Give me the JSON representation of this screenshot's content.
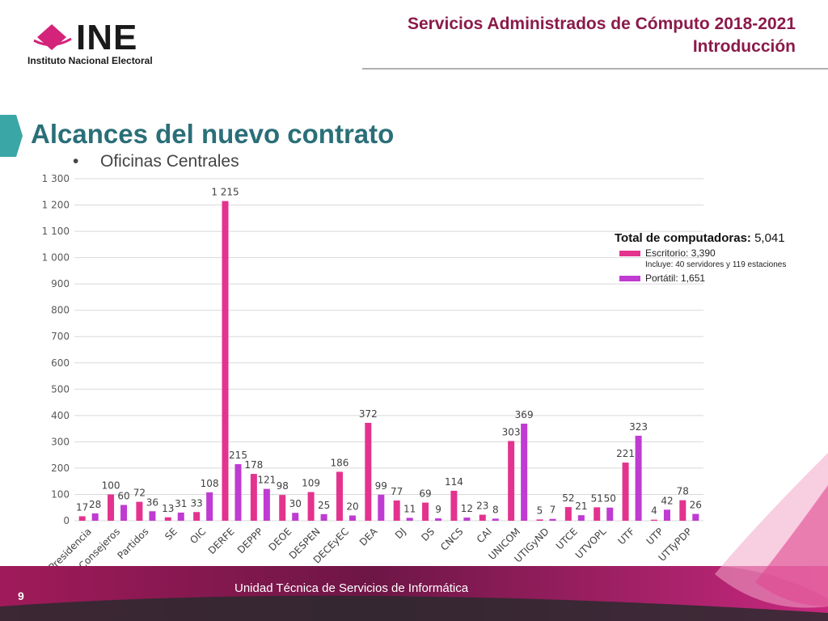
{
  "logo": {
    "wordmark": "INE",
    "subtitle": "Instituto Nacional Electoral"
  },
  "header": {
    "line1": "Servicios Administrados de Cómputo 2018-2021",
    "line2": "Introducción"
  },
  "page": {
    "title": "Alcances del nuevo contrato",
    "bullet": "Oficinas Centrales",
    "number": "9"
  },
  "footer": {
    "text": "Unidad Técnica de Servicios de Informática"
  },
  "legend": {
    "total_label": "Total de computadoras:",
    "total_value": "5,041",
    "desktop": "Escritorio: 3,390",
    "desktop_note": "Incluye: 40 servidores y 119 estaciones",
    "laptop": "Portátil: 1,651"
  },
  "colors": {
    "desktop": "#e3338f",
    "laptop": "#bf3bd2",
    "title": "#2a6f78",
    "header": "#8b1a4a",
    "accent": "#3aa6a6"
  },
  "chart_data": {
    "type": "bar",
    "categories": [
      "Presidencia",
      "Consejeros",
      "Partidos",
      "SE",
      "OIC",
      "DERFE",
      "DEPPP",
      "DEOE",
      "DESPEN",
      "DECEyEC",
      "DEA",
      "DJ",
      "DS",
      "CNCS",
      "CAI",
      "UNICOM",
      "UTIGyND",
      "UTCE",
      "UTVOPL",
      "UTF",
      "UTP",
      "UTTyPDP"
    ],
    "series": [
      {
        "name": "Escritorio",
        "values": [
          17,
          100,
          72,
          13,
          33,
          1215,
          178,
          98,
          109,
          186,
          372,
          77,
          69,
          114,
          23,
          303,
          5,
          52,
          51,
          221,
          4,
          78
        ]
      },
      {
        "name": "Portátil",
        "values": [
          28,
          60,
          36,
          31,
          108,
          215,
          121,
          30,
          25,
          20,
          99,
          11,
          9,
          12,
          8,
          369,
          7,
          21,
          50,
          323,
          42,
          26
        ]
      }
    ],
    "ylim": [
      0,
      1300
    ],
    "yticks": [
      0,
      100,
      200,
      300,
      400,
      500,
      600,
      700,
      800,
      900,
      1000,
      1100,
      1200,
      1300
    ],
    "ytick_labels": [
      "0",
      "100",
      "200",
      "300",
      "400",
      "500",
      "600",
      "700",
      "800",
      "900",
      "1 000",
      "1 100",
      "1 200",
      "1 300"
    ],
    "value_labels": [
      [
        "17",
        "100",
        "72",
        "13",
        "33",
        "1 215",
        "178",
        "98",
        "109",
        "186",
        "372",
        "77",
        "69",
        "114",
        "23",
        "303",
        "5",
        "52",
        "51",
        "221",
        "4",
        "78"
      ],
      [
        "28",
        "60",
        "36",
        "31",
        "108",
        "215",
        "121",
        "30",
        "25",
        "20",
        "99",
        "11",
        "9",
        "12",
        "8",
        "369",
        "7",
        "21",
        "50",
        "323",
        "42",
        "26"
      ]
    ],
    "grid": true,
    "legend_position": "right"
  }
}
